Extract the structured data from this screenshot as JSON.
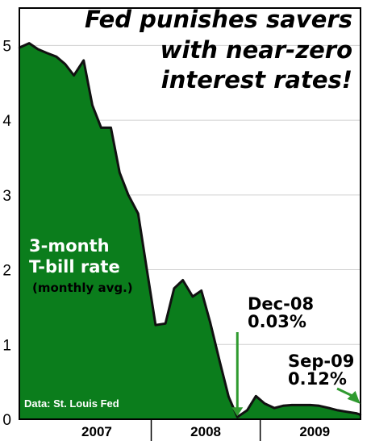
{
  "chart_data": {
    "type": "area",
    "title": [
      "Fed punishes savers",
      "with near-zero",
      "interest rates!"
    ],
    "series_label": "3-month\nT-bill rate",
    "series_sublabel": "(monthly avg.)",
    "source": "Data: St. Louis Fed",
    "y_ticks": [
      "0",
      "1",
      "2",
      "3",
      "4",
      "5"
    ],
    "ylim": [
      0,
      5.5
    ],
    "x_ticks": [
      {
        "label": "2007",
        "x": 2007.5
      },
      {
        "label": "2008",
        "x": 2008.5
      },
      {
        "label": "2009",
        "x": 2009.5
      }
    ],
    "xlim": [
      2006.79,
      2009.92
    ],
    "grid": true,
    "legend": "none",
    "series": [
      {
        "x": [
          2006.79,
          2006.88,
          2006.96,
          2007.04,
          2007.13,
          2007.21,
          2007.29,
          2007.38,
          2007.46,
          2007.54,
          2007.63,
          2007.71,
          2007.79,
          2007.88,
          2007.96,
          2008.04,
          2008.13,
          2008.21,
          2008.29,
          2008.38,
          2008.46,
          2008.54,
          2008.63,
          2008.71,
          2008.79,
          2008.88,
          2008.96,
          2009.04,
          2009.13,
          2009.21,
          2009.29,
          2009.38,
          2009.46,
          2009.54,
          2009.63,
          2009.71,
          2009.79,
          2009.88,
          2009.92
        ],
        "values": [
          4.97,
          5.03,
          4.95,
          4.9,
          4.85,
          4.75,
          4.6,
          4.8,
          4.2,
          3.9,
          3.9,
          3.3,
          3.0,
          2.75,
          2.0,
          1.26,
          1.28,
          1.75,
          1.86,
          1.64,
          1.72,
          1.3,
          0.76,
          0.3,
          0.03,
          0.12,
          0.31,
          0.21,
          0.15,
          0.18,
          0.19,
          0.19,
          0.19,
          0.18,
          0.15,
          0.12,
          0.1,
          0.08,
          0.06
        ]
      }
    ],
    "annotations": [
      {
        "lines": [
          "Dec-08",
          "0.03%"
        ],
        "x": 2008.79,
        "y": 0.03
      },
      {
        "lines": [
          "Sep-09",
          "0.12%"
        ],
        "x": 2009.71,
        "y": 0.12
      }
    ],
    "colors": {
      "fill": "#0b7d1c",
      "line": "#111111",
      "arrow": "#2f9a2f",
      "grid": "#d0d0d0"
    }
  }
}
